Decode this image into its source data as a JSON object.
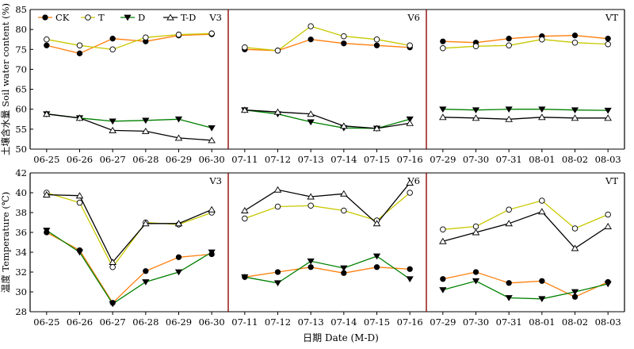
{
  "figure": {
    "x_axis_label": "日期 Date (M-D)",
    "legend": [
      {
        "key": "CK",
        "label": "CK",
        "color": "#ff7f0e",
        "marker": "filled-circle",
        "marker_color": "#000000"
      },
      {
        "key": "T",
        "label": "T",
        "color": "#c8c800",
        "marker": "open-circle",
        "marker_color": "#000000"
      },
      {
        "key": "D",
        "label": "D",
        "color": "#008000",
        "marker": "filled-triangle-down",
        "marker_color": "#000000"
      },
      {
        "key": "TD",
        "label": "T-D",
        "color": "#000000",
        "marker": "open-triangle-up",
        "marker_color": "#000000"
      }
    ],
    "colors": {
      "panel_border": "#8b0000",
      "axis": "#000000"
    }
  },
  "chart_data": [
    {
      "type": "line",
      "row": 0,
      "ylabel": "土壤含水量 Soil water content (%)",
      "ylim": [
        50,
        85
      ],
      "yticks": [
        50,
        55,
        60,
        65,
        70,
        75,
        80,
        85
      ],
      "grid": false,
      "panels": [
        {
          "label": "V3",
          "categories": [
            "06-25",
            "06-26",
            "06-27",
            "06-28",
            "06-29",
            "06-30"
          ],
          "series": [
            {
              "key": "CK",
              "values": [
                76.0,
                74.0,
                77.7,
                77.0,
                78.5,
                78.8
              ]
            },
            {
              "key": "T",
              "values": [
                77.5,
                76.0,
                75.0,
                78.0,
                78.7,
                79.0
              ]
            },
            {
              "key": "D",
              "values": [
                58.8,
                57.8,
                57.0,
                57.2,
                57.5,
                55.3
              ]
            },
            {
              "key": "TD",
              "values": [
                58.8,
                57.8,
                54.7,
                54.5,
                52.8,
                52.2
              ]
            }
          ]
        },
        {
          "label": "V6",
          "categories": [
            "07-11",
            "07-12",
            "07-13",
            "07-14",
            "07-15",
            "07-16"
          ],
          "series": [
            {
              "key": "CK",
              "values": [
                75.0,
                74.7,
                77.5,
                76.5,
                76.0,
                75.5
              ]
            },
            {
              "key": "T",
              "values": [
                75.5,
                74.7,
                80.8,
                78.3,
                77.5,
                76.0
              ]
            },
            {
              "key": "D",
              "values": [
                59.8,
                58.8,
                56.8,
                55.3,
                55.2,
                57.5
              ]
            },
            {
              "key": "TD",
              "values": [
                59.8,
                59.3,
                58.8,
                55.8,
                55.2,
                56.5
              ]
            }
          ]
        },
        {
          "label": "VT",
          "categories": [
            "07-29",
            "07-30",
            "07-31",
            "08-01",
            "08-02",
            "08-03"
          ],
          "series": [
            {
              "key": "CK",
              "values": [
                77.0,
                76.7,
                77.7,
                78.3,
                78.5,
                77.7
              ]
            },
            {
              "key": "T",
              "values": [
                75.3,
                75.8,
                76.0,
                77.5,
                76.7,
                76.3
              ]
            },
            {
              "key": "D",
              "values": [
                60.0,
                59.8,
                60.0,
                60.0,
                59.8,
                59.7
              ]
            },
            {
              "key": "TD",
              "values": [
                58.0,
                57.8,
                57.5,
                58.0,
                57.8,
                57.8
              ]
            }
          ]
        }
      ]
    },
    {
      "type": "line",
      "row": 1,
      "ylabel": "温度 Temperature (℃)",
      "ylim": [
        28,
        42
      ],
      "yticks": [
        28,
        30,
        32,
        34,
        36,
        38,
        40,
        42
      ],
      "grid": false,
      "panels": [
        {
          "label": "V3",
          "categories": [
            "06-25",
            "06-26",
            "06-27",
            "06-28",
            "06-29",
            "06-30"
          ],
          "series": [
            {
              "key": "CK",
              "values": [
                36.0,
                34.2,
                28.9,
                32.1,
                33.5,
                33.8
              ]
            },
            {
              "key": "T",
              "values": [
                40.0,
                39.0,
                32.5,
                37.0,
                36.8,
                38.0
              ]
            },
            {
              "key": "D",
              "values": [
                36.2,
                34.0,
                28.8,
                31.0,
                32.0,
                34.0
              ]
            },
            {
              "key": "TD",
              "values": [
                39.8,
                39.7,
                33.0,
                36.9,
                36.9,
                38.3
              ]
            }
          ]
        },
        {
          "label": "V6",
          "categories": [
            "07-11",
            "07-12",
            "07-13",
            "07-14",
            "07-15",
            "07-16"
          ],
          "series": [
            {
              "key": "CK",
              "values": [
                31.5,
                32.0,
                32.5,
                31.9,
                32.5,
                32.3
              ]
            },
            {
              "key": "T",
              "values": [
                37.4,
                38.6,
                38.7,
                38.2,
                37.2,
                40.0
              ]
            },
            {
              "key": "D",
              "values": [
                31.5,
                30.9,
                33.1,
                32.4,
                33.6,
                31.3
              ]
            },
            {
              "key": "TD",
              "values": [
                38.2,
                40.3,
                39.6,
                39.9,
                36.9,
                41.0
              ]
            }
          ]
        },
        {
          "label": "VT",
          "categories": [
            "07-29",
            "07-30",
            "07-31",
            "08-01",
            "08-02",
            "08-03"
          ],
          "series": [
            {
              "key": "CK",
              "values": [
                31.3,
                32.0,
                30.9,
                31.1,
                29.5,
                31.0
              ]
            },
            {
              "key": "T",
              "values": [
                36.3,
                36.6,
                38.3,
                39.2,
                36.4,
                37.8
              ]
            },
            {
              "key": "D",
              "values": [
                30.2,
                31.1,
                29.4,
                29.3,
                30.0,
                30.8
              ]
            },
            {
              "key": "TD",
              "values": [
                35.1,
                36.0,
                36.9,
                38.1,
                34.4,
                36.6
              ]
            }
          ]
        }
      ]
    }
  ]
}
